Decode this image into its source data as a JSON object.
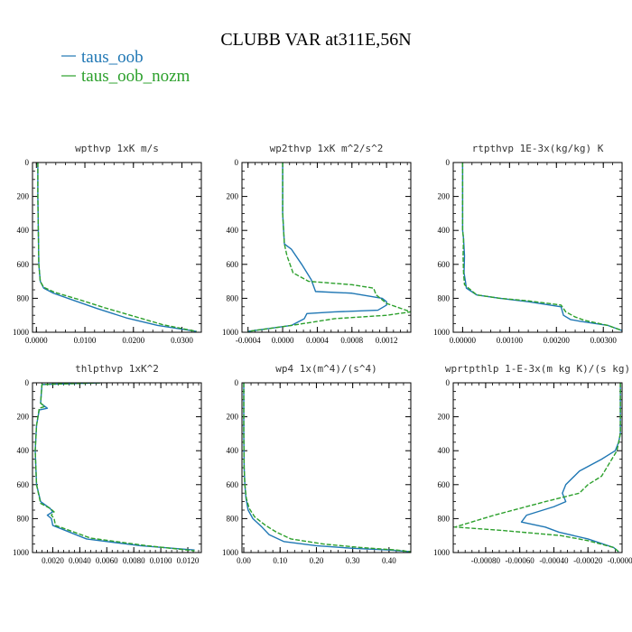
{
  "title": "CLUBB VAR at311E,56N",
  "colors": {
    "taus_oob": "#1f77b4",
    "taus_oob_nozm": "#2ca02c"
  },
  "chart_data": [
    {
      "type": "line",
      "title": "wpthvp   1xK m/s",
      "xlim": [
        -0.0008,
        0.034
      ],
      "ylim": [
        1000,
        0
      ],
      "xticks": [
        "0.0000",
        "0.0100",
        "0.0200",
        "0.0300"
      ],
      "xtick_values": [
        0,
        0.01,
        0.02,
        0.03
      ],
      "yticks": [
        "0",
        "200",
        "400",
        "600",
        "800",
        "1000"
      ],
      "ytick_values": [
        0,
        200,
        400,
        600,
        800,
        1000
      ],
      "series": [
        {
          "name": "taus_oob",
          "style": "solid",
          "x": [
            0.0003,
            0.0003,
            0.0004,
            0.0005,
            0.0008,
            0.0015,
            0.0035,
            0.0075,
            0.0125,
            0.0185,
            0.025,
            0.033
          ],
          "y": [
            0,
            200,
            400,
            600,
            700,
            740,
            770,
            810,
            860,
            915,
            960,
            995
          ]
        },
        {
          "name": "taus_oob_nozm",
          "style": "dash",
          "x": [
            0.0003,
            0.0003,
            0.0004,
            0.0005,
            0.0008,
            0.0015,
            0.0038,
            0.0085,
            0.014,
            0.02,
            0.026,
            0.033
          ],
          "y": [
            0,
            200,
            400,
            600,
            700,
            735,
            765,
            805,
            855,
            905,
            955,
            995
          ]
        }
      ]
    },
    {
      "type": "line",
      "title": "wp2thvp   1xK m^2/s^2",
      "xlim": [
        -0.00047,
        0.00148
      ],
      "ylim": [
        1000,
        0
      ],
      "xticks": [
        "-0.0004",
        "0.0000",
        "0.0004",
        "0.0008",
        "0.0012"
      ],
      "xtick_values": [
        -0.0004,
        0,
        0.0004,
        0.0008,
        0.0012
      ],
      "yticks": [
        "0",
        "200",
        "400",
        "600",
        "800",
        "1000"
      ],
      "ytick_values": [
        0,
        200,
        400,
        600,
        800,
        1000
      ],
      "series": [
        {
          "name": "taus_oob",
          "style": "solid",
          "x": [
            0.0,
            0.0,
            2e-05,
            0.0001,
            0.00022,
            0.00033,
            0.00038,
            0.0008,
            0.00115,
            0.0012,
            0.0012,
            0.0011,
            0.0006,
            0.00028,
            0.00025,
            0.0001,
            -0.0004
          ],
          "y": [
            0,
            300,
            480,
            510,
            600,
            690,
            760,
            770,
            800,
            820,
            840,
            870,
            880,
            890,
            920,
            960,
            995
          ]
        },
        {
          "name": "taus_oob_nozm",
          "style": "dash",
          "x": [
            0.0,
            0.0,
            2e-05,
            5e-05,
            0.00012,
            0.0003,
            0.0008,
            0.00105,
            0.00108,
            0.0012,
            0.00148,
            0.0012,
            0.0006,
            0.0001,
            -0.0004
          ],
          "y": [
            0,
            300,
            480,
            550,
            650,
            700,
            720,
            740,
            780,
            830,
            880,
            900,
            920,
            960,
            995
          ]
        }
      ]
    },
    {
      "type": "line",
      "title": "rtpthvp   1E-3x(kg/kg) K",
      "xlim": [
        -0.0002,
        0.0034
      ],
      "ylim": [
        1000,
        0
      ],
      "xticks": [
        "0.00000",
        "0.00100",
        "0.00200",
        "0.00300"
      ],
      "xtick_values": [
        0,
        0.001,
        0.002,
        0.003
      ],
      "yticks": [
        "0",
        "200",
        "400",
        "600",
        "800",
        "1000"
      ],
      "ytick_values": [
        0,
        200,
        400,
        600,
        800,
        1000
      ],
      "series": [
        {
          "name": "taus_oob",
          "style": "solid",
          "x": [
            0.0,
            0.0,
            2e-05,
            4e-05,
            3e-05,
            6e-05,
            8e-05,
            0.0003,
            0.0008,
            0.0014,
            0.0021,
            0.00215,
            0.0023,
            0.0025,
            0.0031,
            0.0034
          ],
          "y": [
            0,
            400,
            450,
            550,
            650,
            700,
            740,
            780,
            800,
            820,
            850,
            900,
            925,
            935,
            960,
            990
          ]
        },
        {
          "name": "taus_oob_nozm",
          "style": "dash",
          "x": [
            0.0,
            0.0,
            2e-05,
            1e-05,
            2e-05,
            4e-05,
            0.0003,
            0.0008,
            0.0014,
            0.0021,
            0.0022,
            0.0024,
            0.0026,
            0.0031,
            0.0034
          ],
          "y": [
            0,
            400,
            450,
            550,
            650,
            720,
            780,
            800,
            815,
            840,
            880,
            910,
            930,
            960,
            990
          ]
        }
      ]
    },
    {
      "type": "line",
      "title": "thlpthvp   1xK^2",
      "xlim": [
        0.0005,
        0.013
      ],
      "ylim": [
        1000,
        0
      ],
      "xticks": [
        "0.0020",
        "0.0040",
        "0.0060",
        "0.0080",
        "0.0100",
        "0.0120"
      ],
      "xtick_values": [
        0.002,
        0.004,
        0.006,
        0.008,
        0.01,
        0.012
      ],
      "yticks": [
        "0",
        "200",
        "400",
        "600",
        "800",
        "1000"
      ],
      "ytick_values": [
        0,
        200,
        400,
        600,
        800,
        1000
      ],
      "series": [
        {
          "name": "taus_oob",
          "style": "solid",
          "x": [
            0.0055,
            0.0012,
            0.0011,
            0.0016,
            0.001,
            0.0008,
            0.0007,
            0.0008,
            0.0011,
            0.0018,
            0.002,
            0.0016,
            0.0019,
            0.002,
            0.0045,
            0.0085,
            0.0125
          ],
          "y": [
            0,
            10,
            120,
            150,
            160,
            250,
            400,
            600,
            700,
            740,
            760,
            780,
            800,
            840,
            920,
            960,
            985
          ]
        },
        {
          "name": "taus_oob_nozm",
          "style": "dash",
          "x": [
            0.0055,
            0.0012,
            0.0011,
            0.0014,
            0.001,
            0.0008,
            0.0007,
            0.0008,
            0.0011,
            0.0018,
            0.0021,
            0.0019,
            0.0021,
            0.0022,
            0.0048,
            0.009,
            0.0125
          ],
          "y": [
            0,
            10,
            120,
            140,
            150,
            250,
            400,
            600,
            710,
            740,
            760,
            780,
            800,
            840,
            915,
            960,
            990
          ]
        }
      ]
    },
    {
      "type": "line",
      "title": "wp4   1x(m^4)/(s^4)",
      "xlim": [
        -0.005,
        0.46
      ],
      "ylim": [
        1000,
        0
      ],
      "xticks": [
        "0.00",
        "0.10",
        "0.20",
        "0.30",
        "0.40"
      ],
      "xtick_values": [
        0,
        0.1,
        0.2,
        0.3,
        0.4
      ],
      "yticks": [
        "0",
        "200",
        "400",
        "600",
        "800",
        "1000"
      ],
      "ytick_values": [
        0,
        200,
        400,
        600,
        800,
        1000
      ],
      "series": [
        {
          "name": "taus_oob",
          "style": "solid",
          "x": [
            0.0,
            0.0,
            0.001,
            0.003,
            0.006,
            0.012,
            0.025,
            0.05,
            0.07,
            0.11,
            0.2,
            0.3,
            0.4,
            0.46
          ],
          "y": [
            0,
            300,
            500,
            600,
            680,
            750,
            800,
            850,
            895,
            935,
            960,
            975,
            985,
            995
          ]
        },
        {
          "name": "taus_oob_nozm",
          "style": "dash",
          "x": [
            0.0,
            0.0,
            0.001,
            0.003,
            0.007,
            0.015,
            0.03,
            0.06,
            0.09,
            0.13,
            0.22,
            0.32,
            0.42,
            0.46
          ],
          "y": [
            0,
            300,
            500,
            600,
            680,
            740,
            790,
            840,
            880,
            920,
            950,
            970,
            985,
            995
          ]
        }
      ]
    },
    {
      "type": "line",
      "title": "wprtpthlp   1-E-3x(m kg K)/(s kg)",
      "xlim": [
        -0.00099,
        0.0
      ],
      "ylim": [
        1000,
        0
      ],
      "xticks": [
        "-0.00080",
        "-0.00060",
        "-0.00040",
        "-0.00020",
        "-0.00000"
      ],
      "xtick_values": [
        -0.0008,
        -0.0006,
        -0.0004,
        -0.0002,
        0
      ],
      "yticks": [
        "0",
        "200",
        "400",
        "600",
        "800",
        "1000"
      ],
      "ytick_values": [
        0,
        200,
        400,
        600,
        800,
        1000
      ],
      "series": [
        {
          "name": "taus_oob",
          "style": "solid",
          "x": [
            -1e-05,
            -1e-05,
            -2e-05,
            -4e-05,
            -0.00012,
            -0.00025,
            -0.00033,
            -0.00035,
            -0.00033,
            -0.0004,
            -0.00056,
            -0.00059,
            -0.00045,
            -0.00037,
            -0.0002,
            -5e-05,
            -2e-05
          ],
          "y": [
            0,
            300,
            350,
            400,
            450,
            520,
            600,
            650,
            700,
            730,
            780,
            820,
            850,
            880,
            920,
            970,
            995
          ]
        },
        {
          "name": "taus_oob_nozm",
          "style": "dash",
          "x": [
            -1e-05,
            -1e-05,
            -2e-05,
            -3e-05,
            -6e-05,
            -0.00012,
            -0.0002,
            -0.00025,
            -0.00045,
            -0.00075,
            -0.00098,
            -0.0007,
            -0.00036,
            -0.0002,
            -5e-05,
            -2e-05
          ],
          "y": [
            0,
            300,
            350,
            400,
            450,
            550,
            600,
            650,
            700,
            780,
            850,
            870,
            900,
            930,
            970,
            995
          ]
        }
      ]
    }
  ]
}
